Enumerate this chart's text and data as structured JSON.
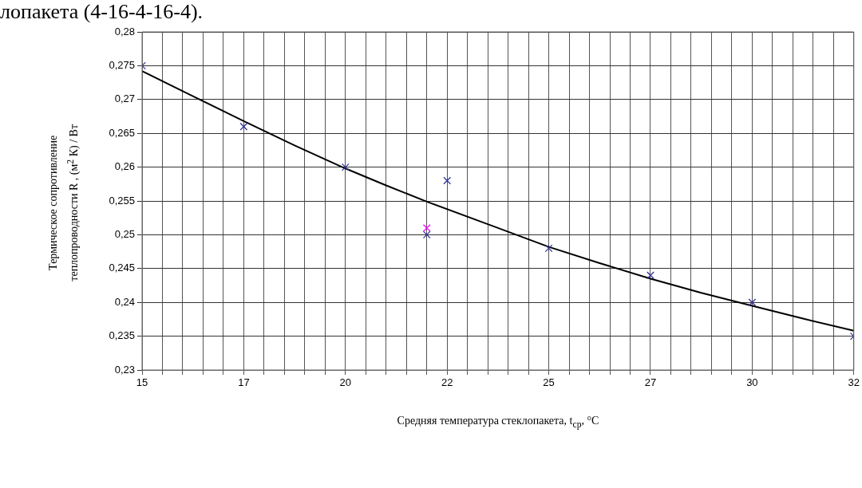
{
  "chart_data": {
    "type": "scatter",
    "annotations": [
      "лопакета (4-16-4-16-4)."
    ],
    "xlabel": "Средняя температура стеклопакета, t$_{ср}$, °С",
    "ylabel": "Термическое сопротивление теплопроводности  R , (м$^{2}$ К) / Вт",
    "xlim": [
      15,
      32.5
    ],
    "xticks": [
      {
        "value": 15,
        "label": "15"
      },
      {
        "value": 17.5,
        "label": "17"
      },
      {
        "value": 20,
        "label": "20"
      },
      {
        "value": 22.5,
        "label": "22"
      },
      {
        "value": 25,
        "label": "25"
      },
      {
        "value": 27.5,
        "label": "27"
      },
      {
        "value": 30,
        "label": "30"
      },
      {
        "value": 32.5,
        "label": "32"
      }
    ],
    "ylim": [
      0.23,
      0.28
    ],
    "yticks": [
      {
        "value": 0.23,
        "label": "0,23"
      },
      {
        "value": 0.235,
        "label": "0,235"
      },
      {
        "value": 0.24,
        "label": "0,24"
      },
      {
        "value": 0.245,
        "label": "0,245"
      },
      {
        "value": 0.25,
        "label": "0,25"
      },
      {
        "value": 0.255,
        "label": "0,255"
      },
      {
        "value": 0.26,
        "label": "0,26"
      },
      {
        "value": 0.265,
        "label": "0,265"
      },
      {
        "value": 0.27,
        "label": "0,27"
      },
      {
        "value": 0.275,
        "label": "0,275"
      },
      {
        "value": 0.28,
        "label": "0,28"
      }
    ],
    "grid": true,
    "series": [
      {
        "type": "scatter",
        "color": "#333399",
        "marker": "cross",
        "x": [
          15,
          17.5,
          20,
          22,
          22.5,
          25,
          27.5,
          30,
          32.5
        ],
        "values": [
          0.275,
          0.266,
          0.26,
          0.25,
          0.258,
          0.248,
          0.244,
          0.24,
          0.235
        ]
      },
      {
        "type": "scatter",
        "color": "#ff00ff",
        "marker": "cross",
        "x": [
          22
        ],
        "values": [
          0.251
        ]
      },
      {
        "type": "line",
        "color": "#000000",
        "marker": "none",
        "x": [
          15,
          16.25,
          17.5,
          18.75,
          20,
          21,
          22,
          23.75,
          25,
          26.25,
          27.5,
          28.75,
          30,
          31.25,
          32.5
        ],
        "values": [
          0.2742,
          0.2705,
          0.2668,
          0.2632,
          0.2598,
          0.2573,
          0.2549,
          0.251,
          0.2482,
          0.2458,
          0.2435,
          0.2414,
          0.2395,
          0.2376,
          0.2358
        ]
      }
    ]
  }
}
